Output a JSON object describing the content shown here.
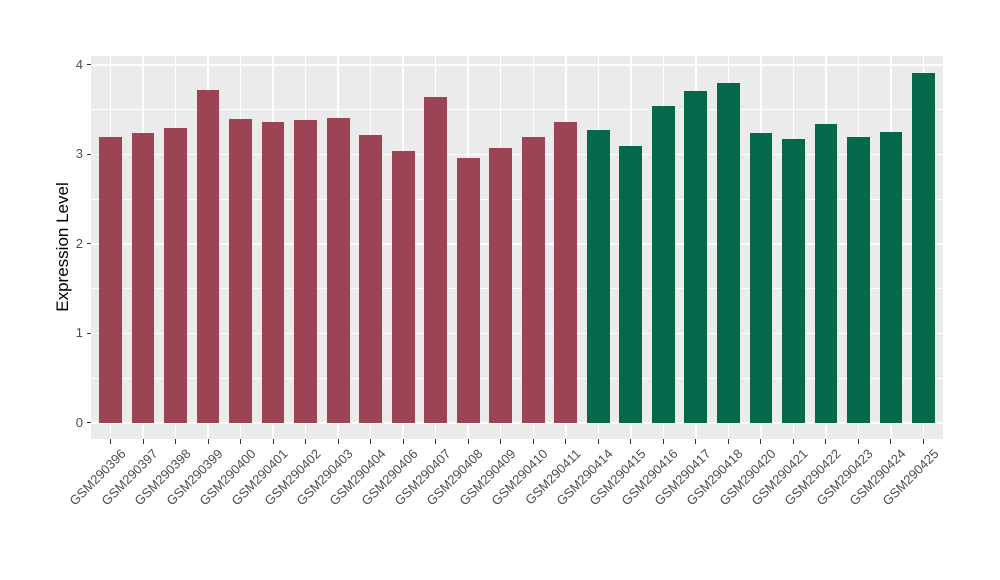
{
  "chart_data": {
    "type": "bar",
    "title": "",
    "xlabel": "",
    "ylabel": "Expression Level",
    "ylim": [
      0,
      4
    ],
    "y_display_range": [
      -0.18,
      4.1
    ],
    "yticks": [
      0,
      1,
      2,
      3,
      4
    ],
    "yminor": [
      0.5,
      1.5,
      2.5,
      3.5
    ],
    "grid": "on",
    "legend": "none",
    "categories": [
      "GSM290396",
      "GSM290397",
      "GSM290398",
      "GSM290399",
      "GSM290400",
      "GSM290401",
      "GSM290402",
      "GSM290403",
      "GSM290404",
      "GSM290406",
      "GSM290407",
      "GSM290408",
      "GSM290409",
      "GSM290410",
      "GSM290411",
      "GSM290414",
      "GSM290415",
      "GSM290416",
      "GSM290417",
      "GSM290418",
      "GSM290420",
      "GSM290421",
      "GSM290422",
      "GSM290423",
      "GSM290424",
      "GSM290425"
    ],
    "values": [
      3.19,
      3.24,
      3.3,
      3.72,
      3.4,
      3.36,
      3.38,
      3.41,
      3.22,
      3.04,
      3.64,
      2.96,
      3.07,
      3.2,
      3.36,
      3.27,
      3.09,
      3.54,
      3.71,
      3.8,
      3.24,
      3.17,
      3.34,
      3.2,
      3.25,
      3.91
    ],
    "groups": [
      0,
      0,
      0,
      0,
      0,
      0,
      0,
      0,
      0,
      0,
      0,
      0,
      0,
      0,
      0,
      1,
      1,
      1,
      1,
      1,
      1,
      1,
      1,
      1,
      1,
      1
    ],
    "palette": [
      "#9C4453",
      "#04684A"
    ],
    "colors": {
      "panel_background": "#EBEBEB",
      "grid": "#FFFFFF",
      "axis_text": "#4D4D4D",
      "axis_title": "#000000",
      "tick_mark": "#333333",
      "figure_background": "#FFFFFF"
    }
  }
}
